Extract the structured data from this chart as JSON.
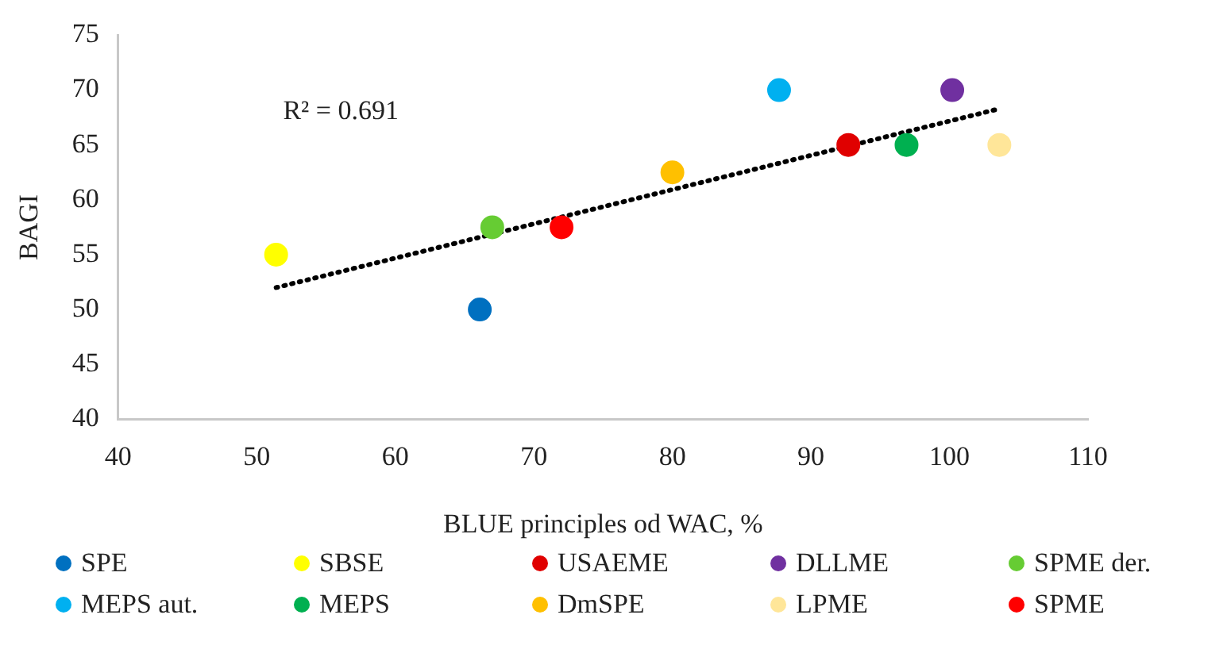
{
  "chart_data": {
    "type": "scatter",
    "xlabel": "BLUE principles od WAC, %",
    "ylabel": "BAGI",
    "xlim": [
      40,
      110
    ],
    "xticks": [
      40,
      50,
      60,
      70,
      80,
      90,
      100,
      110
    ],
    "ylim": [
      40,
      75
    ],
    "yticks": [
      40,
      45,
      50,
      55,
      60,
      65,
      70,
      75
    ],
    "grid": false,
    "legend": "bottom",
    "marker": "circle",
    "annotations": [
      "R² = 0.691"
    ],
    "series": [
      {
        "name": "SPE",
        "color": "#0070c0",
        "x": [
          66.1
        ],
        "values": [
          50
        ]
      },
      {
        "name": "SBSE",
        "color": "#ffff00",
        "x": [
          51.4
        ],
        "values": [
          55
        ]
      },
      {
        "name": "USAEME",
        "color": "#e00000",
        "x": [
          92.7
        ],
        "values": [
          65
        ]
      },
      {
        "name": "DLLME",
        "color": "#7030a0",
        "x": [
          100.2
        ],
        "values": [
          70
        ]
      },
      {
        "name": "SPME der.",
        "color": "#66cc33",
        "x": [
          67.0
        ],
        "values": [
          57.5
        ]
      },
      {
        "name": "MEPS aut.",
        "color": "#00b0f0",
        "x": [
          87.7
        ],
        "values": [
          70
        ]
      },
      {
        "name": "MEPS",
        "color": "#00b050",
        "x": [
          96.9
        ],
        "values": [
          65
        ]
      },
      {
        "name": "DmSPE",
        "color": "#ffc000",
        "x": [
          80.0
        ],
        "values": [
          62.5
        ]
      },
      {
        "name": "LPME",
        "color": "#ffe699",
        "x": [
          103.6
        ],
        "values": [
          65
        ]
      },
      {
        "name": "SPME",
        "color": "#ff0000",
        "x": [
          72.0
        ],
        "values": [
          57.5
        ]
      },
      {
        "type": "line",
        "color": "#000000",
        "line_style": "dotted",
        "marker": "none",
        "x": [
          51.4,
          103.6
        ],
        "values": [
          52.0,
          68.3
        ]
      }
    ]
  }
}
